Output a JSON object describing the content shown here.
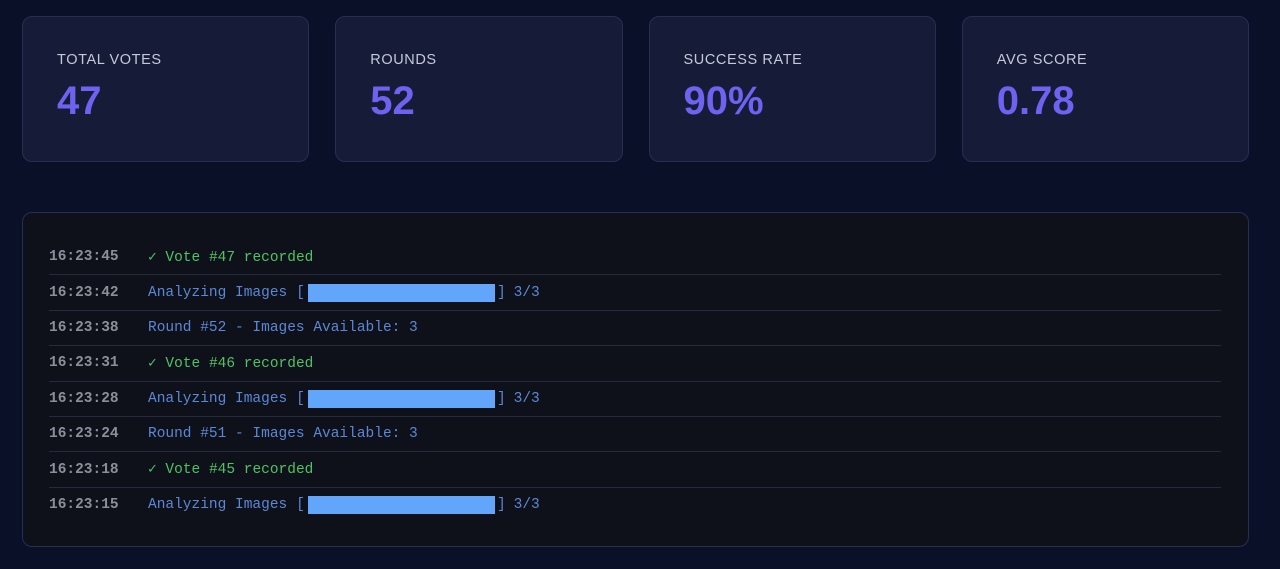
{
  "stats": [
    {
      "label": "TOTAL VOTES",
      "value": "47"
    },
    {
      "label": "ROUNDS",
      "value": "52"
    },
    {
      "label": "SUCCESS RATE",
      "value": "90%"
    },
    {
      "label": "AVG SCORE",
      "value": "0.78"
    }
  ],
  "log": {
    "entries": [
      {
        "time": "16:23:45",
        "type": "success",
        "text": "✓ Vote #47 recorded"
      },
      {
        "time": "16:23:42",
        "type": "progress",
        "text": "Analyzing Images",
        "open": "[",
        "close": "]",
        "count": "3/3",
        "fraction": 1.0
      },
      {
        "time": "16:23:38",
        "type": "info",
        "text": "Round #52 - Images Available: 3"
      },
      {
        "time": "16:23:31",
        "type": "success",
        "text": "✓ Vote #46 recorded"
      },
      {
        "time": "16:23:28",
        "type": "progress",
        "text": "Analyzing Images",
        "open": "[",
        "close": "]",
        "count": "3/3",
        "fraction": 1.0
      },
      {
        "time": "16:23:24",
        "type": "info",
        "text": "Round #51 - Images Available: 3"
      },
      {
        "time": "16:23:18",
        "type": "success",
        "text": "✓ Vote #45 recorded"
      },
      {
        "time": "16:23:15",
        "type": "progress",
        "text": "Analyzing Images",
        "open": "[",
        "close": "]",
        "count": "3/3",
        "fraction": 1.0
      }
    ]
  },
  "colors": {
    "background": "#0b1029",
    "card": "#161c38",
    "accent": "#6d63f0",
    "success": "#4fc364",
    "info": "#5b87d6",
    "progress_fill": "#61a6fa"
  }
}
